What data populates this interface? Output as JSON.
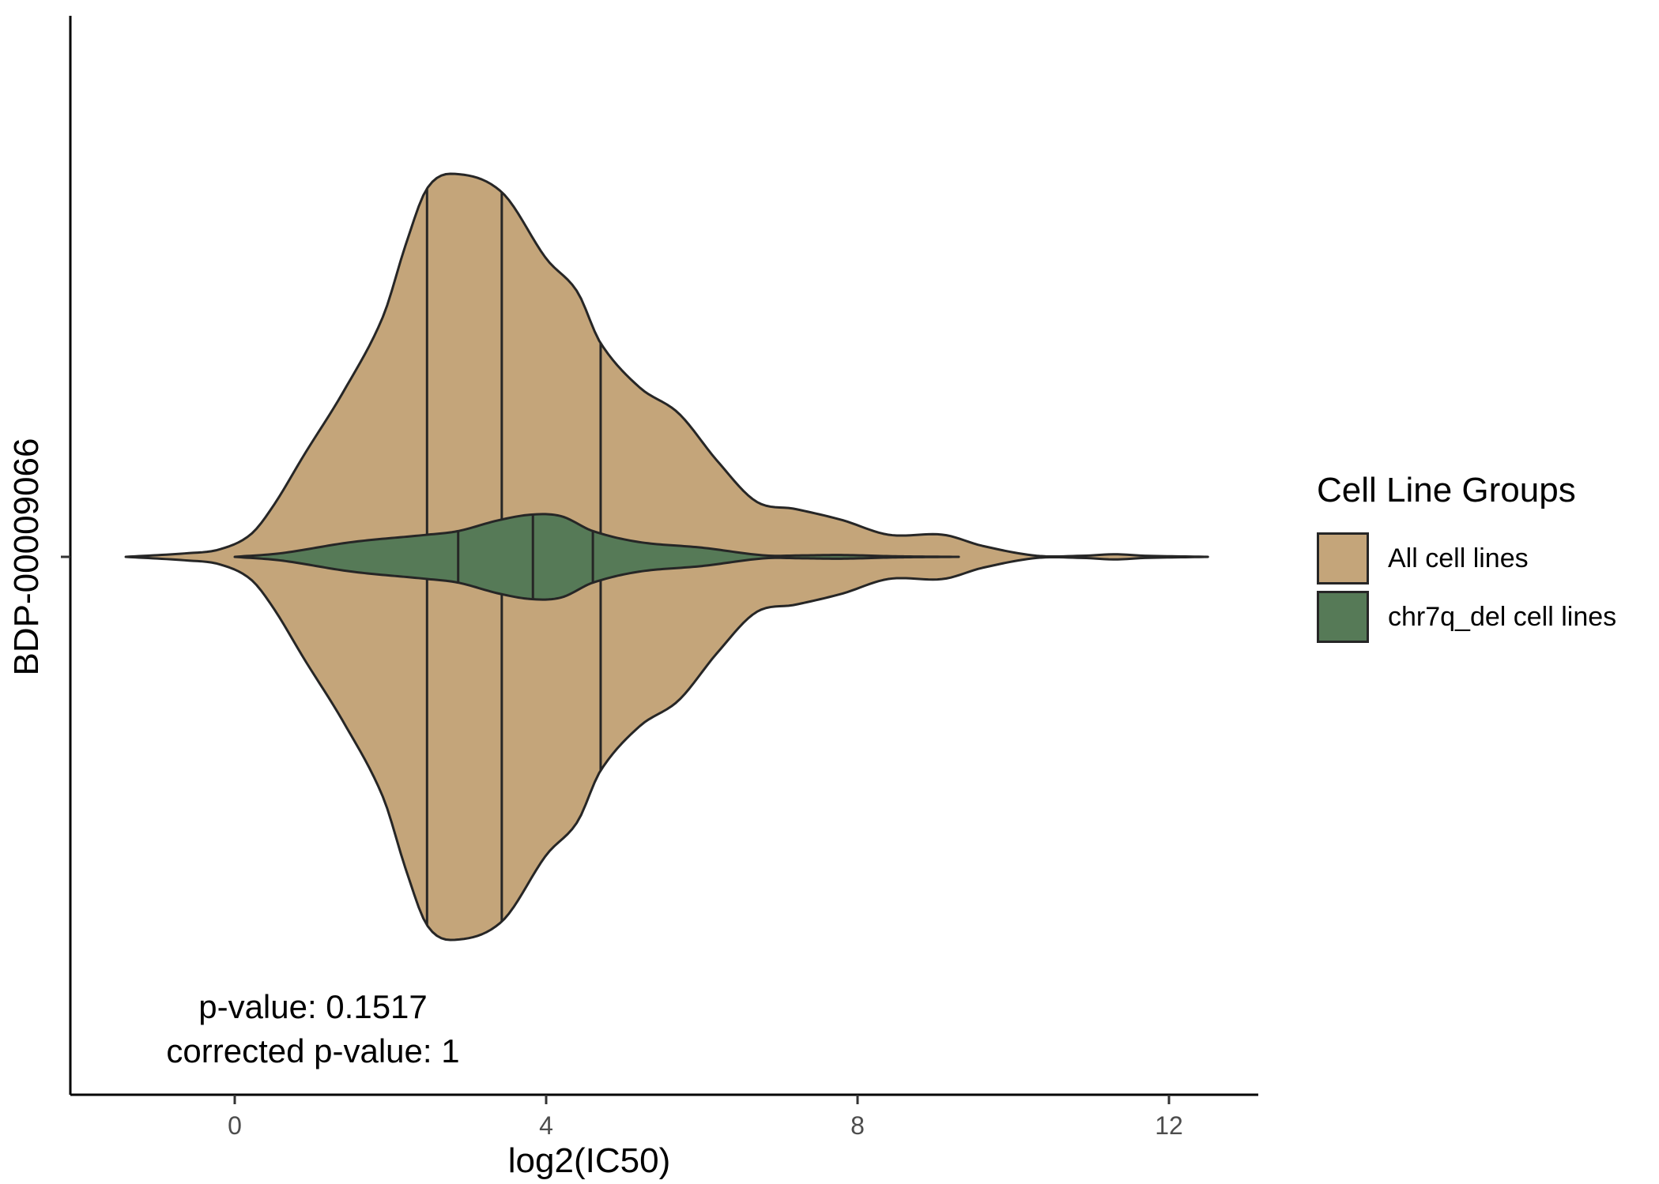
{
  "chart_data": {
    "type": "violin",
    "orientation": "horizontal",
    "xlabel": "log2(IC50)",
    "ylabel": "BDP-00009066",
    "xlim": [
      -2.1,
      13.2
    ],
    "x_ticks": [
      0,
      4,
      8,
      12
    ],
    "y_categories": [
      "BDP-00009066"
    ],
    "legend_title": "Cell Line Groups",
    "legend_position": "right",
    "grid": false,
    "annotation": [
      "p-value: 0.1517",
      "corrected p-value: 1"
    ],
    "series": [
      {
        "name": "All cell lines",
        "color": "#C4A57A",
        "range": [
          -1.4,
          12.5
        ],
        "quantiles": [
          2.47,
          3.43,
          4.7
        ],
        "density": [
          [
            -1.4,
            0.0
          ],
          [
            -0.6,
            0.01
          ],
          [
            -0.2,
            0.02
          ],
          [
            0.2,
            0.06
          ],
          [
            0.5,
            0.14
          ],
          [
            0.9,
            0.28
          ],
          [
            1.4,
            0.45
          ],
          [
            1.9,
            0.65
          ],
          [
            2.2,
            0.85
          ],
          [
            2.47,
            1.0
          ],
          [
            2.8,
            1.04
          ],
          [
            3.43,
            0.99
          ],
          [
            4.0,
            0.81
          ],
          [
            4.4,
            0.72
          ],
          [
            4.7,
            0.58
          ],
          [
            5.2,
            0.46
          ],
          [
            5.7,
            0.39
          ],
          [
            6.2,
            0.26
          ],
          [
            6.7,
            0.15
          ],
          [
            7.2,
            0.13
          ],
          [
            7.8,
            0.1
          ],
          [
            8.4,
            0.06
          ],
          [
            9.1,
            0.06
          ],
          [
            9.6,
            0.03
          ],
          [
            10.3,
            0.003
          ],
          [
            10.9,
            0.003
          ],
          [
            11.3,
            0.007
          ],
          [
            11.7,
            0.003
          ],
          [
            12.5,
            0.0
          ]
        ]
      },
      {
        "name": "chr7q_del cell lines",
        "color": "#567A57",
        "range": [
          0.0,
          9.3
        ],
        "quantiles": [
          2.87,
          3.83,
          4.6
        ],
        "density": [
          [
            0.0,
            0.0
          ],
          [
            0.6,
            0.01
          ],
          [
            1.5,
            0.04
          ],
          [
            2.47,
            0.06
          ],
          [
            2.87,
            0.07
          ],
          [
            3.4,
            0.1
          ],
          [
            3.83,
            0.115
          ],
          [
            4.2,
            0.11
          ],
          [
            4.6,
            0.07
          ],
          [
            5.2,
            0.04
          ],
          [
            6.0,
            0.025
          ],
          [
            6.8,
            0.004
          ],
          [
            7.3,
            0.004
          ],
          [
            7.8,
            0.005
          ],
          [
            8.5,
            0.0015
          ],
          [
            9.3,
            0.0
          ]
        ]
      }
    ]
  }
}
